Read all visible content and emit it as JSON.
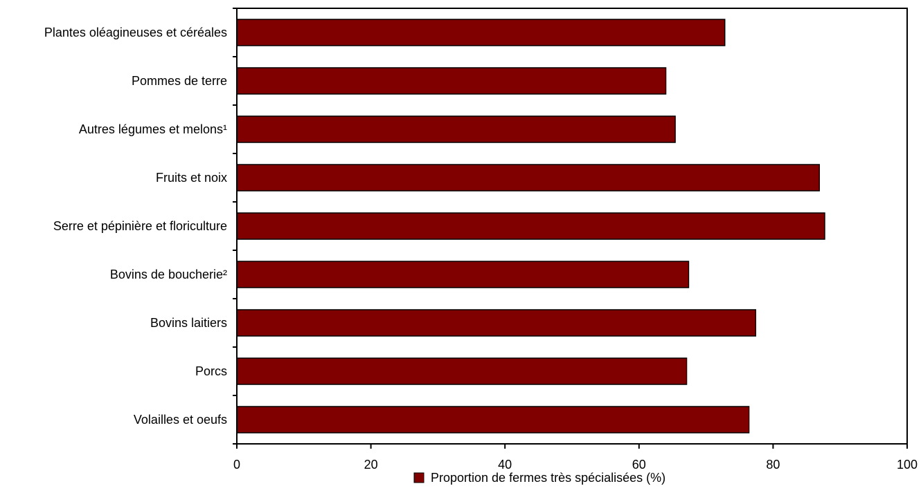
{
  "chart_data": {
    "type": "bar",
    "orientation": "horizontal",
    "categories": [
      "Plantes oléagineuses et céréales",
      "Pommes de terre",
      "Autres légumes et melons¹",
      "Fruits et noix",
      "Serre et pépinière et floriculture",
      "Bovins de boucherie²",
      "Bovins laitiers",
      "Porcs",
      "Volailles et oeufs"
    ],
    "series": [
      {
        "name": "Proportion de fermes très spécialisées (%)",
        "values": [
          72.8,
          64.0,
          65.4,
          86.9,
          87.7,
          67.4,
          77.4,
          67.1,
          76.4
        ]
      }
    ],
    "title": "",
    "xlabel": "",
    "ylabel": "",
    "xlim": [
      0,
      100
    ],
    "xticks": [
      0,
      20,
      40,
      60,
      80,
      100
    ],
    "grid": false,
    "legend_position": "bottom-center",
    "colors": {
      "bar": "#800000",
      "bar_stroke": "#000000",
      "axis": "#000000"
    }
  }
}
